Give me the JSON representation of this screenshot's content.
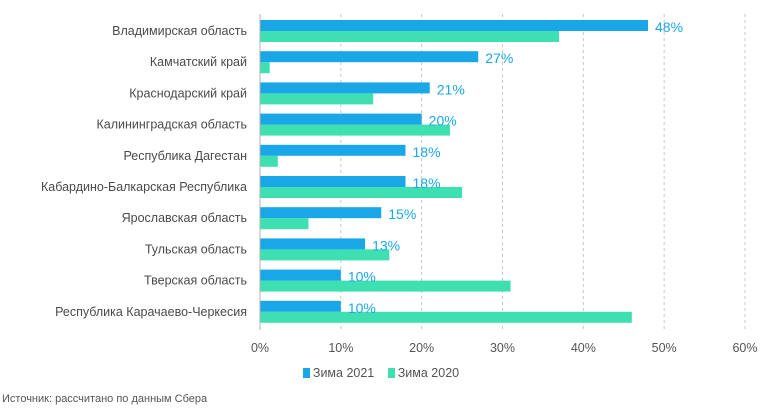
{
  "chart_data": {
    "type": "bar",
    "orientation": "horizontal",
    "categories": [
      "Владимирская область",
      "Камчатский край",
      "Краснодарский край",
      "Калининградская область",
      "Республика Дагестан",
      "Кабардино-Балкарская Республика",
      "Ярославская область",
      "Тульская область",
      "Тверская область",
      "Республика Карачаево-Черкесия"
    ],
    "series": [
      {
        "name": "Зима 2021",
        "color": "#1aa7e8",
        "values": [
          48,
          27,
          21,
          20,
          18,
          18,
          15,
          13,
          10,
          10
        ],
        "labels": [
          "48%",
          "27%",
          "21%",
          "20%",
          "18%",
          "18%",
          "15%",
          "13%",
          "10%",
          "10%"
        ]
      },
      {
        "name": "Зима 2020",
        "color": "#3ee0b2",
        "values": [
          37,
          1.2,
          14,
          23.5,
          2.2,
          25,
          6,
          16,
          31,
          46
        ]
      }
    ],
    "x_ticks": [
      "0%",
      "10%",
      "20%",
      "30%",
      "40%",
      "50%",
      "60%"
    ],
    "xlim": [
      0,
      60
    ],
    "grid": true,
    "legend_position": "bottom"
  },
  "legend": {
    "items": [
      {
        "label": "Зима 2021",
        "color": "#1aa7e8"
      },
      {
        "label": "Зима 2020",
        "color": "#3ee0b2"
      }
    ]
  },
  "source": "Источник: рассчитано по данным Сбера"
}
